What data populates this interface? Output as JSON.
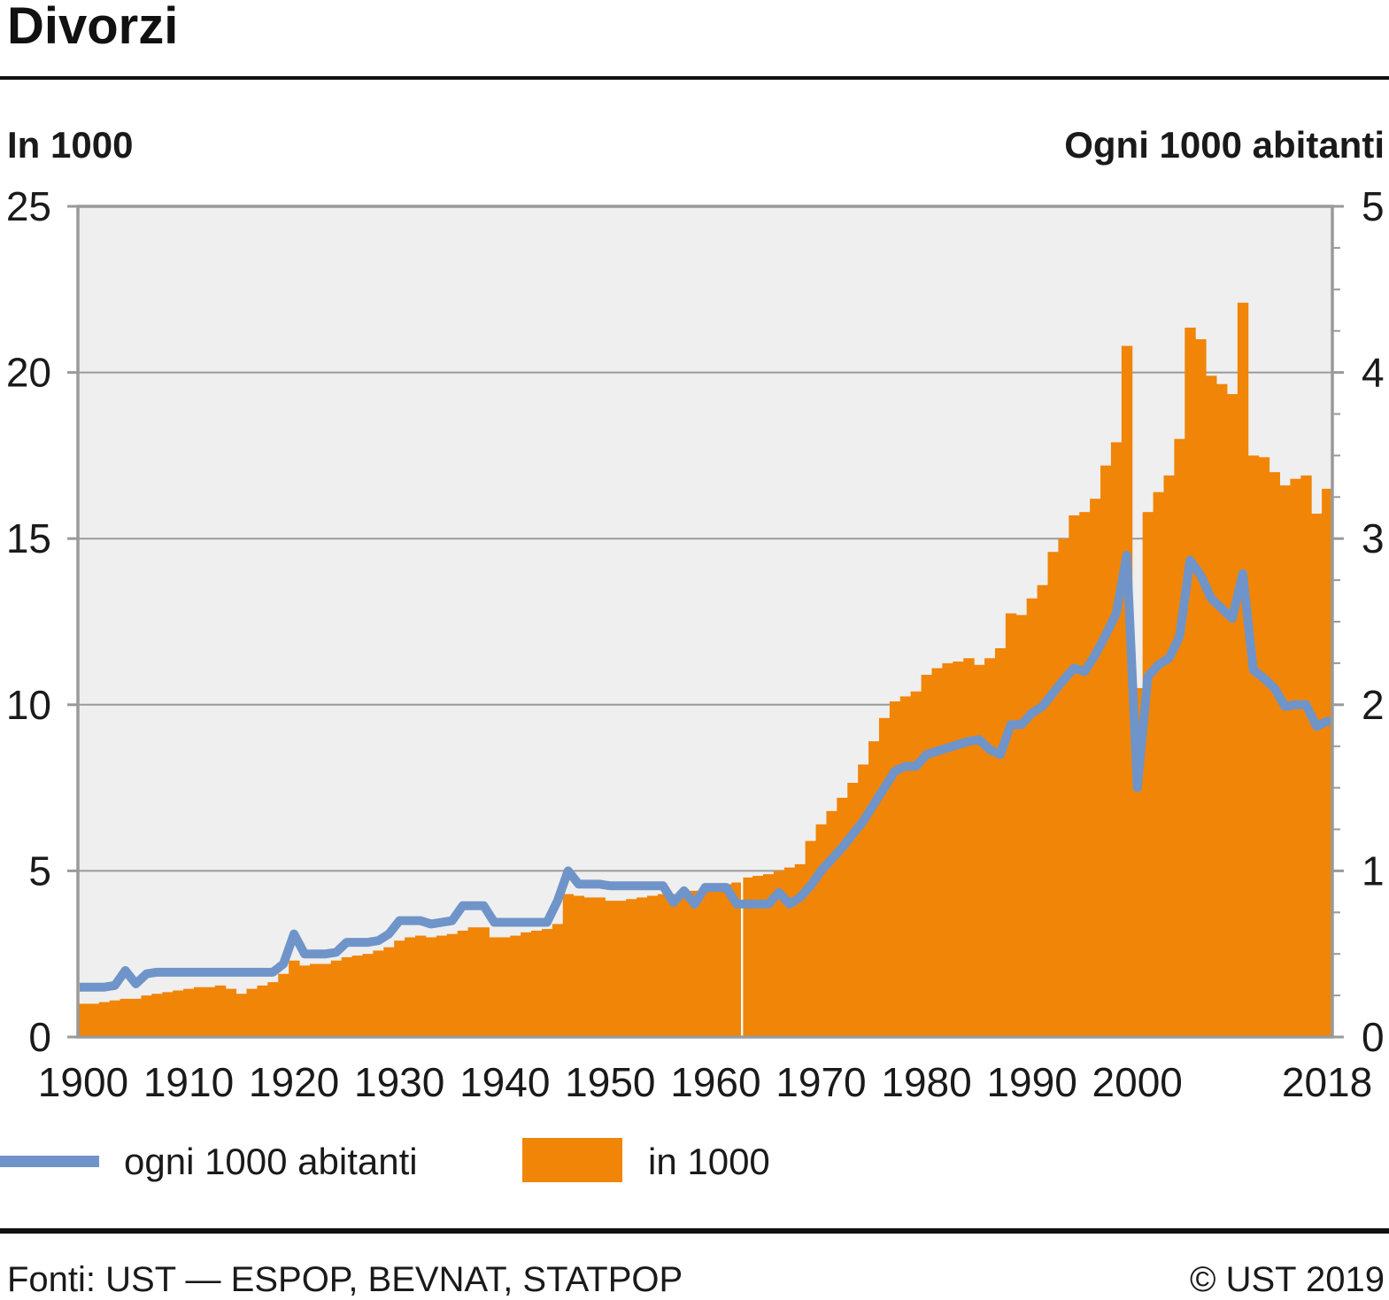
{
  "header": {
    "title": "Divorzi"
  },
  "axis_headers": {
    "left": "In 1000",
    "right": "Ogni 1000 abitanti"
  },
  "legend": {
    "items": [
      {
        "label": "ogni 1000 abitanti",
        "type": "line",
        "color": "#6F94C9"
      },
      {
        "label": "in 1000",
        "type": "area",
        "color": "#F08508"
      }
    ]
  },
  "footer": {
    "source": "Fonti: UST — ESPOP, BEVNAT, STATPOP",
    "copyright": "© UST 2019"
  },
  "chart_data": {
    "type": "bar+line",
    "title": "Divorzi",
    "year_min": 1900,
    "year_max": 2018,
    "x_ticks": [
      1900,
      1910,
      1920,
      1930,
      1940,
      1950,
      1960,
      1970,
      1980,
      1990,
      2000,
      2018
    ],
    "left_axis": {
      "title": "In 1000",
      "range": [
        0,
        25
      ],
      "ticks": [
        0,
        5,
        10,
        15,
        20,
        25
      ]
    },
    "right_axis": {
      "title": "Ogni 1000 abitanti",
      "range": [
        0,
        5
      ],
      "ticks": [
        0,
        1,
        2,
        3,
        4,
        5
      ],
      "minor_step": 0.25
    },
    "grid": true,
    "legend_position": "bottom",
    "break_after_year": 1962,
    "colors": {
      "bars": "#F08508",
      "line": "#6F94C9",
      "plot_bg": "#EFEFEF",
      "grid": "#9A9A9A",
      "axis": "#9A9A9A",
      "tick_text": "#1a1a1a",
      "break_line": "#FFFFFF"
    },
    "series": [
      {
        "name": "in 1000",
        "type": "bar",
        "axis": "left",
        "values": [
          1.0,
          1.0,
          1.05,
          1.1,
          1.15,
          1.15,
          1.25,
          1.3,
          1.35,
          1.4,
          1.45,
          1.5,
          1.5,
          1.55,
          1.45,
          1.3,
          1.45,
          1.55,
          1.65,
          1.9,
          2.3,
          2.15,
          2.2,
          2.2,
          2.3,
          2.4,
          2.45,
          2.5,
          2.6,
          2.7,
          2.9,
          3.0,
          3.05,
          3.0,
          3.05,
          3.1,
          3.2,
          3.3,
          3.3,
          3.0,
          3.0,
          3.05,
          3.15,
          3.2,
          3.25,
          3.4,
          4.3,
          4.25,
          4.2,
          4.2,
          4.1,
          4.1,
          4.15,
          4.2,
          4.25,
          4.3,
          4.3,
          4.35,
          4.4,
          4.4,
          4.6,
          4.6,
          4.65,
          4.8,
          4.85,
          4.9,
          5.0,
          5.1,
          5.2,
          5.9,
          6.4,
          6.8,
          7.2,
          7.65,
          8.2,
          8.9,
          9.6,
          10.1,
          10.25,
          10.4,
          10.9,
          11.1,
          11.25,
          11.3,
          11.4,
          11.2,
          11.4,
          11.7,
          12.75,
          12.7,
          13.2,
          13.6,
          14.6,
          15.0,
          15.7,
          15.8,
          16.2,
          17.2,
          17.9,
          20.8,
          10.5,
          15.8,
          16.4,
          16.9,
          18.0,
          21.35,
          21.0,
          19.9,
          19.65,
          19.35,
          22.1,
          17.5,
          17.45,
          17.0,
          16.6,
          16.8,
          16.9,
          15.75,
          16.5
        ]
      },
      {
        "name": "ogni 1000 abitanti",
        "type": "line",
        "axis": "right",
        "values": [
          0.3,
          0.3,
          0.3,
          0.31,
          0.4,
          0.32,
          0.38,
          0.39,
          0.39,
          0.39,
          0.39,
          0.39,
          0.39,
          0.39,
          0.39,
          0.39,
          0.39,
          0.39,
          0.39,
          0.44,
          0.62,
          0.5,
          0.5,
          0.5,
          0.51,
          0.57,
          0.57,
          0.57,
          0.58,
          0.62,
          0.7,
          0.7,
          0.7,
          0.68,
          0.69,
          0.7,
          0.79,
          0.79,
          0.79,
          0.69,
          0.69,
          0.69,
          0.69,
          0.69,
          0.69,
          0.82,
          1.0,
          0.92,
          0.92,
          0.92,
          0.91,
          0.91,
          0.91,
          0.91,
          0.91,
          0.91,
          0.81,
          0.88,
          0.8,
          0.9,
          0.9,
          0.9,
          0.8,
          0.8,
          0.8,
          0.8,
          0.87,
          0.8,
          0.84,
          0.91,
          1.0,
          1.07,
          1.14,
          1.22,
          1.3,
          1.4,
          1.5,
          1.6,
          1.63,
          1.63,
          1.7,
          1.72,
          1.74,
          1.76,
          1.78,
          1.79,
          1.73,
          1.7,
          1.88,
          1.88,
          1.95,
          1.99,
          2.07,
          2.15,
          2.22,
          2.2,
          2.3,
          2.42,
          2.55,
          2.9,
          1.5,
          2.17,
          2.24,
          2.28,
          2.41,
          2.87,
          2.78,
          2.64,
          2.58,
          2.52,
          2.79,
          2.21,
          2.16,
          2.1,
          1.99,
          2.0,
          2.0,
          1.87,
          1.9
        ]
      }
    ]
  }
}
